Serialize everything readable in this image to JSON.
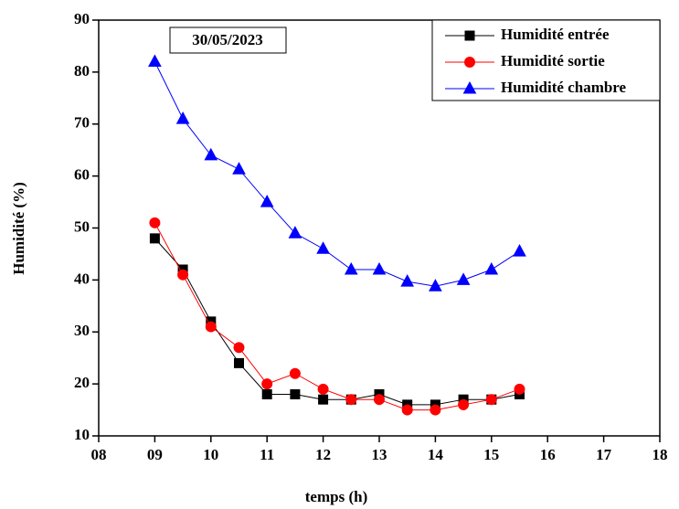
{
  "chart_data": {
    "type": "line",
    "x_label": "temps (h)",
    "y_label": "Humidité (%)",
    "annotation": "30/05/2023",
    "x": [
      9,
      9.5,
      10,
      10.5,
      11,
      11.5,
      12,
      12.5,
      13,
      13.5,
      14,
      14.5,
      15,
      15.5
    ],
    "series": [
      {
        "name": "Humidité entrée",
        "color": "#000000",
        "marker": "square",
        "values": [
          48,
          42,
          32,
          24,
          18,
          18,
          17,
          17,
          18,
          16,
          16,
          17,
          17,
          18
        ]
      },
      {
        "name": "Humidité sortie",
        "color": "#ff0000",
        "marker": "circle",
        "values": [
          51,
          41,
          31,
          27,
          20,
          22,
          19,
          17,
          17,
          15,
          15,
          16,
          17,
          19
        ]
      },
      {
        "name": "Humidité chambre",
        "color": "#0000ff",
        "marker": "triangle",
        "values": [
          82,
          71,
          64,
          61.3,
          55,
          49,
          46,
          42,
          42,
          39.7,
          38.8,
          40,
          42,
          45.5
        ]
      }
    ],
    "xlim": [
      8,
      18
    ],
    "xticks": [
      {
        "value": 8,
        "label": "08"
      },
      {
        "value": 9,
        "label": "09"
      },
      10,
      11,
      12,
      13,
      14,
      15,
      16,
      17,
      18
    ],
    "ylim": [
      10,
      90
    ],
    "yticks": [
      10,
      20,
      30,
      40,
      50,
      60,
      70,
      80,
      90
    ],
    "legend": "top-right",
    "grid": false
  }
}
